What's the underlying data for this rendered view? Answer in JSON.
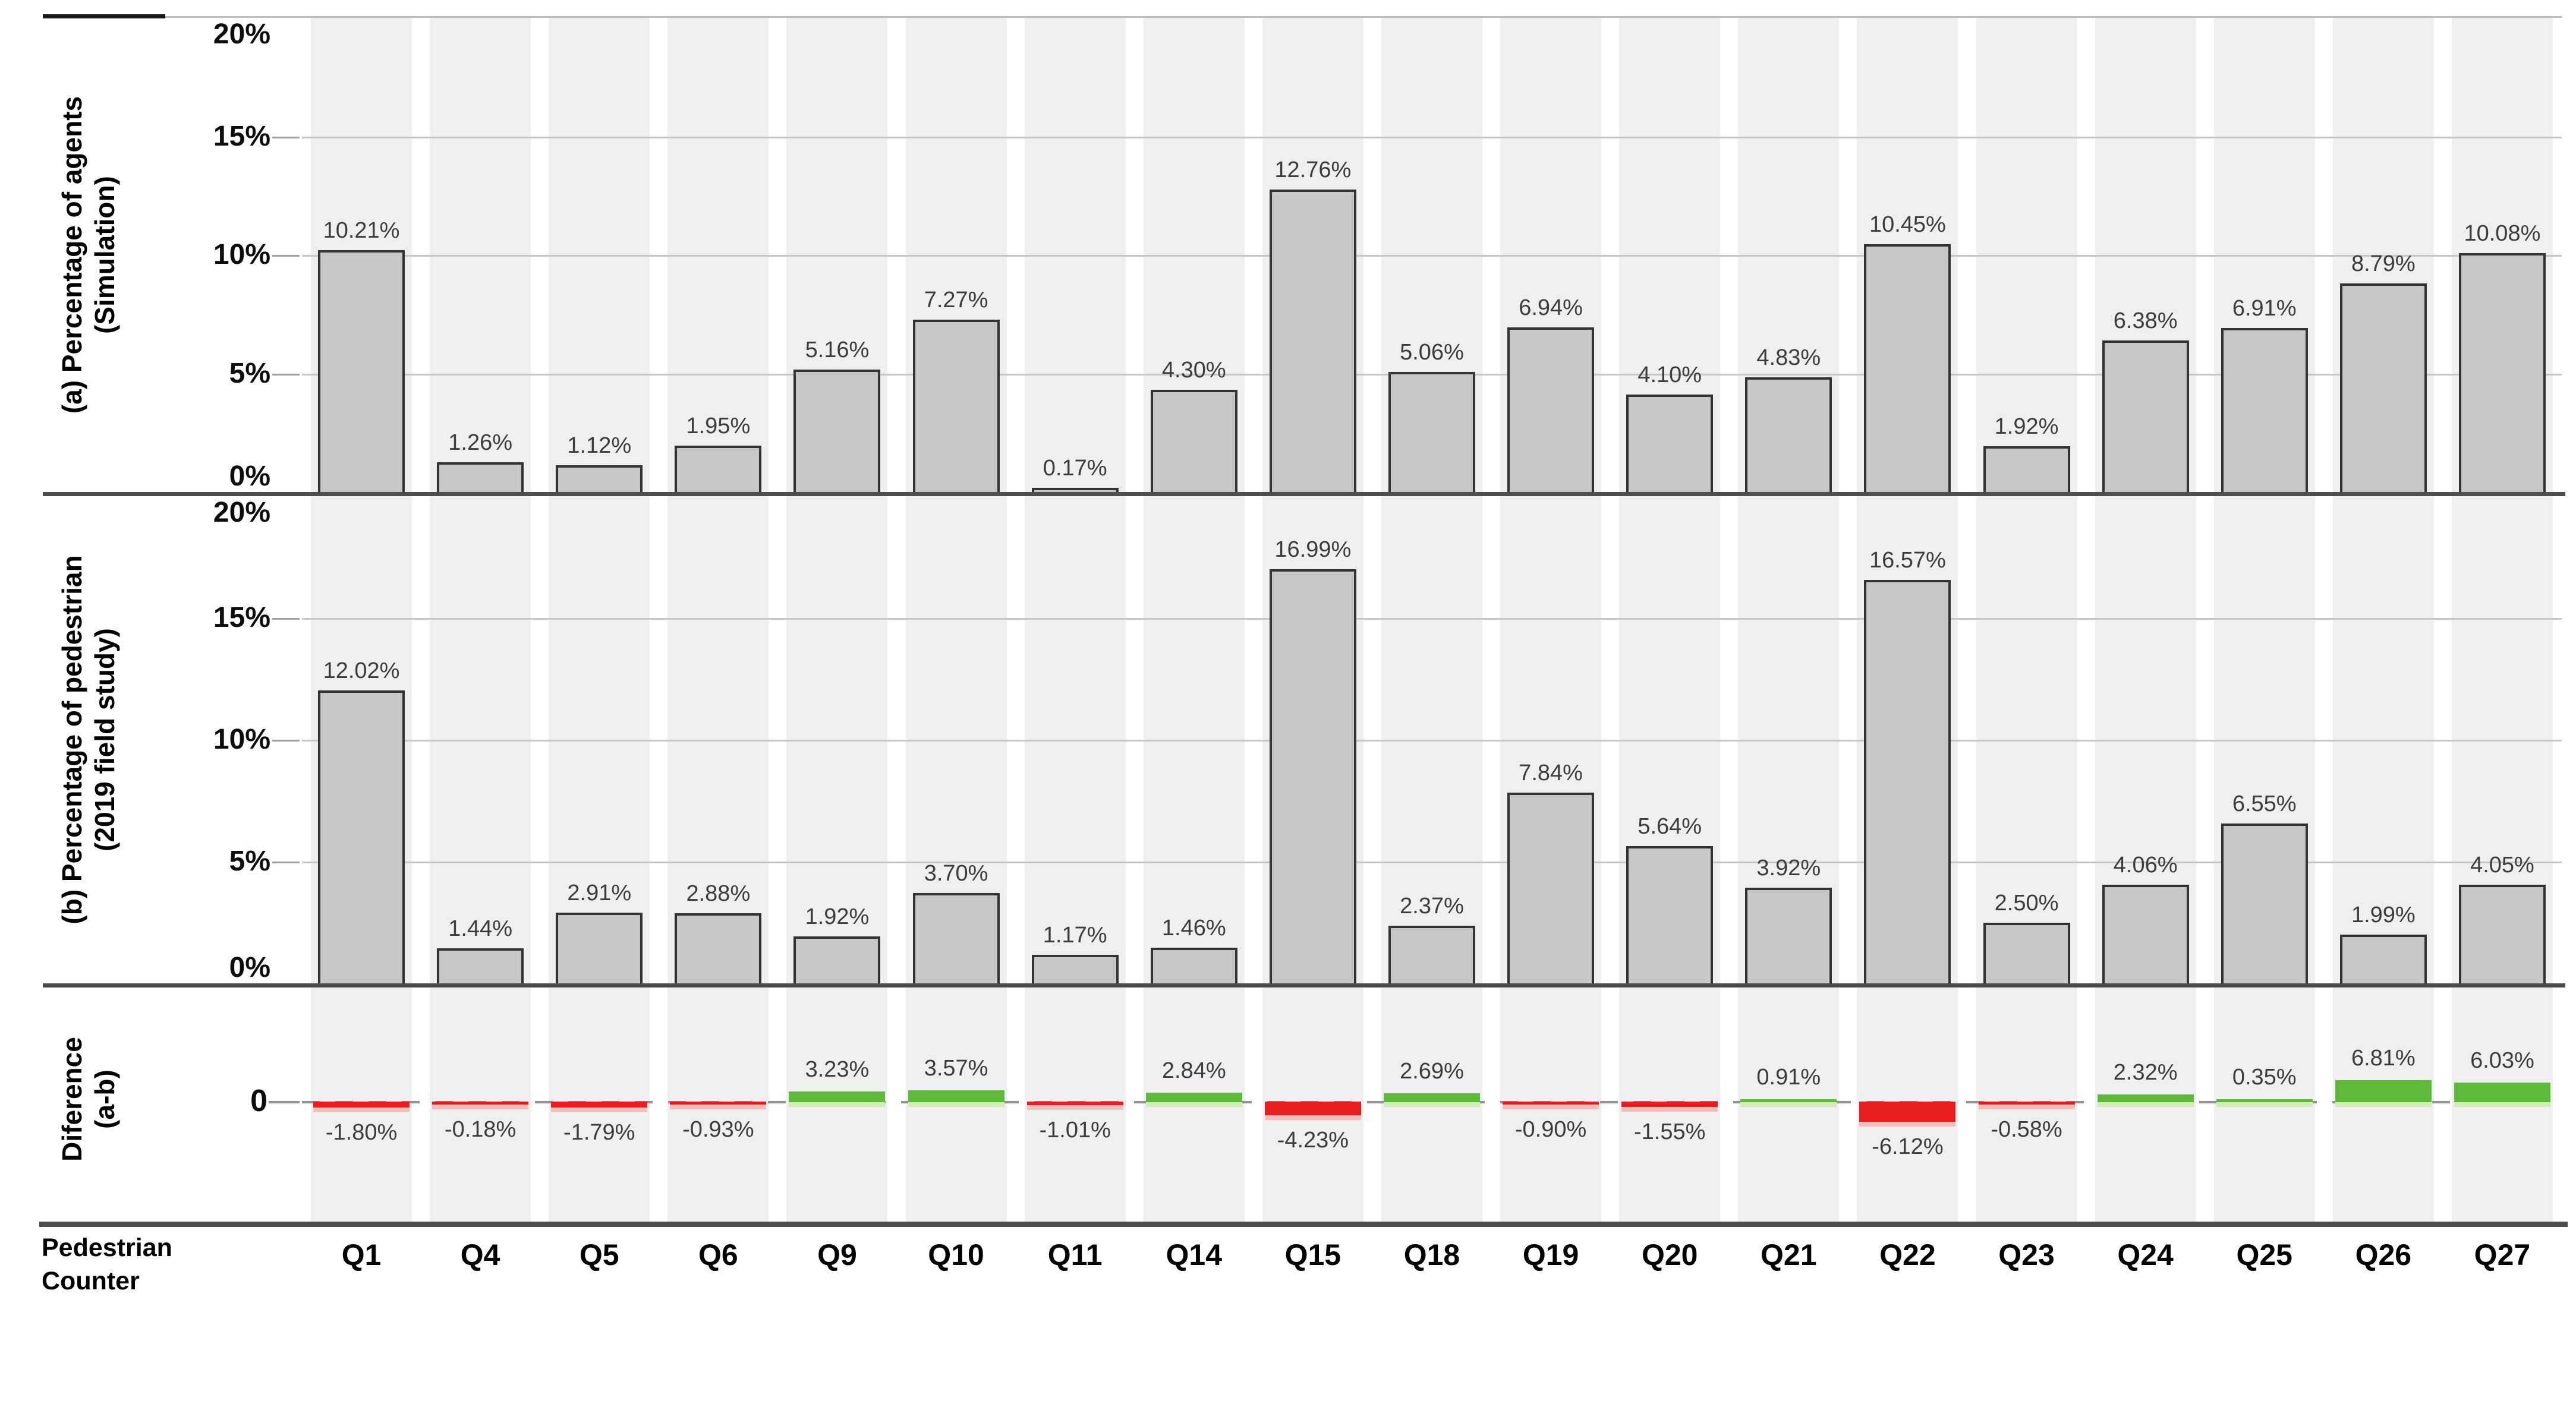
{
  "chart_data": {
    "type": "bar",
    "title": "",
    "categories": [
      "Q1",
      "Q4",
      "Q5",
      "Q6",
      "Q9",
      "Q10",
      "Q11",
      "Q14",
      "Q15",
      "Q18",
      "Q19",
      "Q20",
      "Q21",
      "Q22",
      "Q23",
      "Q24",
      "Q25",
      "Q26",
      "Q27"
    ],
    "x_axis_title": [
      "Pedestrian",
      "Counter"
    ],
    "grid": "on",
    "legend": "none",
    "panels": [
      {
        "id": "a",
        "ylabel_lines": [
          "(a) Percentage of agents",
          "(Simulation)"
        ],
        "ticks": [
          "20%",
          "15%",
          "10%",
          "5%",
          "0%"
        ],
        "tick_pcts": [
          20,
          15,
          10,
          5,
          0
        ],
        "ylim": [
          0,
          20
        ],
        "values": [
          10.21,
          1.26,
          1.12,
          1.95,
          5.16,
          7.27,
          0.17,
          4.3,
          12.76,
          5.06,
          6.94,
          4.1,
          4.83,
          10.45,
          1.92,
          6.38,
          6.91,
          8.79,
          10.08
        ],
        "labels": [
          "10.21%",
          "1.26%",
          "1.12%",
          "1.95%",
          "5.16%",
          "7.27%",
          "0.17%",
          "4.30%",
          "12.76%",
          "5.06%",
          "6.94%",
          "4.10%",
          "4.83%",
          "10.45%",
          "1.92%",
          "6.38%",
          "6.91%",
          "8.79%",
          "10.08%"
        ]
      },
      {
        "id": "b",
        "ylabel_lines": [
          "(b) Percentage of pedestrian",
          "(2019 field study)"
        ],
        "ticks": [
          "20%",
          "15%",
          "10%",
          "5%",
          "0%"
        ],
        "tick_pcts": [
          20,
          15,
          10,
          5,
          0
        ],
        "ylim": [
          0,
          20
        ],
        "values": [
          12.02,
          1.44,
          2.91,
          2.88,
          1.92,
          3.7,
          1.17,
          1.46,
          16.99,
          2.37,
          7.84,
          5.64,
          3.92,
          16.57,
          2.5,
          4.06,
          6.55,
          1.99,
          4.05
        ],
        "labels": [
          "12.02%",
          "1.44%",
          "2.91%",
          "2.88%",
          "1.92%",
          "3.70%",
          "1.17%",
          "1.46%",
          "16.99%",
          "2.37%",
          "7.84%",
          "5.64%",
          "3.92%",
          "16.57%",
          "2.50%",
          "4.06%",
          "6.55%",
          "1.99%",
          "4.05%"
        ]
      },
      {
        "id": "diff",
        "ylabel_lines": [
          "Diference",
          "(a-b)"
        ],
        "zero_label": "0",
        "values": [
          -1.8,
          -0.18,
          -1.79,
          -0.93,
          3.23,
          3.57,
          -1.01,
          2.84,
          -4.23,
          2.69,
          -0.9,
          -1.55,
          0.91,
          -6.12,
          -0.58,
          2.32,
          0.35,
          6.81,
          6.03
        ],
        "labels": [
          "-1.80%",
          "-0.18%",
          "-1.79%",
          "-0.93%",
          "3.23%",
          "3.57%",
          "-1.01%",
          "2.84%",
          "-4.23%",
          "2.69%",
          "-0.90%",
          "-1.55%",
          "0.91%",
          "-6.12%",
          "-0.58%",
          "2.32%",
          "0.35%",
          "6.81%",
          "6.03%"
        ]
      }
    ],
    "colors": {
      "bar_fill": "#c7c7c7",
      "bar_border": "#333333",
      "band": "#efefef",
      "grid": "#c6c6c6",
      "separator": "#4d4d4d",
      "axis_black": "#1a1a1a",
      "top_border_gray": "#b9b9b9",
      "zero_dash": "#909090",
      "positive": "#5eb83a",
      "positive_light": "#cfecb8",
      "negative": "#e81c1e",
      "negative_light": "#f6bcb9",
      "value_text": "#3c3c3c",
      "tick_dash": "#a0a0a0"
    }
  }
}
